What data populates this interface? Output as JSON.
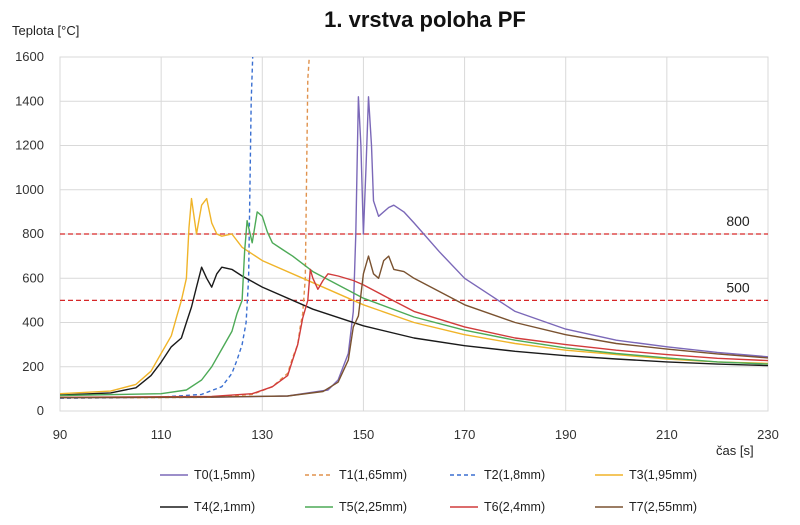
{
  "chart_data": {
    "type": "line",
    "title": "1. vrstva poloha PF",
    "ylabel": "Teplota [°C]",
    "xlabel": "čas [s]",
    "xlim": [
      90,
      230
    ],
    "ylim": [
      0,
      1600
    ],
    "xticks": [
      90,
      110,
      130,
      150,
      170,
      190,
      210,
      230
    ],
    "yticks": [
      0,
      200,
      400,
      600,
      800,
      1000,
      1200,
      1400,
      1600
    ],
    "grid": true,
    "legend_position": "bottom",
    "reference_lines": [
      {
        "y": 800,
        "label": "800",
        "color": "#d62728",
        "dash": true
      },
      {
        "y": 500,
        "label": "500",
        "color": "#d62728",
        "dash": true
      }
    ],
    "series": [
      {
        "name": "T0(1,5mm)",
        "color": "#7b68b8",
        "dash": false,
        "points": [
          [
            90,
            60
          ],
          [
            120,
            62
          ],
          [
            135,
            68
          ],
          [
            143,
            95
          ],
          [
            145,
            140
          ],
          [
            147,
            260
          ],
          [
            148,
            450
          ],
          [
            148.5,
            800
          ],
          [
            149,
            1420
          ],
          [
            149.5,
            1200
          ],
          [
            150,
            800
          ],
          [
            150.5,
            1100
          ],
          [
            151,
            1420
          ],
          [
            151.6,
            1200
          ],
          [
            152,
            950
          ],
          [
            153,
            880
          ],
          [
            155,
            920
          ],
          [
            156,
            930
          ],
          [
            158,
            900
          ],
          [
            160,
            850
          ],
          [
            165,
            720
          ],
          [
            170,
            600
          ],
          [
            180,
            450
          ],
          [
            190,
            370
          ],
          [
            200,
            320
          ],
          [
            210,
            290
          ],
          [
            220,
            265
          ],
          [
            230,
            245
          ]
        ]
      },
      {
        "name": "T1(1,65mm)",
        "color": "#e0924d",
        "dash": true,
        "points": [
          [
            90,
            58
          ],
          [
            120,
            62
          ],
          [
            128,
            75
          ],
          [
            132,
            110
          ],
          [
            135,
            170
          ],
          [
            136,
            240
          ],
          [
            137,
            300
          ],
          [
            137.5,
            380
          ],
          [
            138,
            440
          ],
          [
            138.5,
            600
          ],
          [
            139,
            1500
          ],
          [
            139.3,
            1600
          ]
        ]
      },
      {
        "name": "T2(1,8mm)",
        "color": "#3a6fd1",
        "dash": true,
        "points": [
          [
            90,
            58
          ],
          [
            110,
            63
          ],
          [
            118,
            75
          ],
          [
            122,
            110
          ],
          [
            124,
            170
          ],
          [
            125,
            230
          ],
          [
            126,
            300
          ],
          [
            126.8,
            400
          ],
          [
            127.3,
            600
          ],
          [
            127.8,
            1400
          ],
          [
            128.1,
            1600
          ]
        ]
      },
      {
        "name": "T3(1,95mm)",
        "color": "#f0b429",
        "dash": false,
        "points": [
          [
            90,
            78
          ],
          [
            100,
            90
          ],
          [
            105,
            120
          ],
          [
            108,
            180
          ],
          [
            110,
            260
          ],
          [
            112,
            340
          ],
          [
            113,
            420
          ],
          [
            114,
            500
          ],
          [
            115,
            600
          ],
          [
            115.5,
            830
          ],
          [
            116,
            960
          ],
          [
            117,
            800
          ],
          [
            118,
            930
          ],
          [
            119,
            960
          ],
          [
            120,
            850
          ],
          [
            121,
            800
          ],
          [
            122,
            790
          ],
          [
            124,
            800
          ],
          [
            126,
            740
          ],
          [
            130,
            680
          ],
          [
            140,
            580
          ],
          [
            150,
            480
          ],
          [
            160,
            400
          ],
          [
            170,
            345
          ],
          [
            180,
            305
          ],
          [
            190,
            275
          ],
          [
            200,
            255
          ],
          [
            210,
            235
          ],
          [
            220,
            222
          ],
          [
            230,
            215
          ]
        ]
      },
      {
        "name": "T4(2,1mm)",
        "color": "#1a1a1a",
        "dash": false,
        "points": [
          [
            90,
            72
          ],
          [
            100,
            82
          ],
          [
            105,
            105
          ],
          [
            108,
            160
          ],
          [
            110,
            220
          ],
          [
            112,
            290
          ],
          [
            114,
            330
          ],
          [
            115,
            400
          ],
          [
            116,
            470
          ],
          [
            117,
            560
          ],
          [
            118,
            650
          ],
          [
            119,
            600
          ],
          [
            120,
            560
          ],
          [
            121,
            620
          ],
          [
            122,
            650
          ],
          [
            124,
            640
          ],
          [
            126,
            610
          ],
          [
            130,
            560
          ],
          [
            140,
            460
          ],
          [
            150,
            385
          ],
          [
            160,
            330
          ],
          [
            170,
            295
          ],
          [
            180,
            270
          ],
          [
            190,
            250
          ],
          [
            200,
            235
          ],
          [
            210,
            222
          ],
          [
            220,
            212
          ],
          [
            230,
            205
          ]
        ]
      },
      {
        "name": "T5(2,25mm)",
        "color": "#4daa57",
        "dash": false,
        "points": [
          [
            90,
            70
          ],
          [
            110,
            78
          ],
          [
            115,
            95
          ],
          [
            118,
            140
          ],
          [
            120,
            200
          ],
          [
            122,
            280
          ],
          [
            124,
            360
          ],
          [
            125,
            440
          ],
          [
            126,
            500
          ],
          [
            126.5,
            720
          ],
          [
            127,
            860
          ],
          [
            128,
            760
          ],
          [
            129,
            900
          ],
          [
            130,
            880
          ],
          [
            131,
            810
          ],
          [
            132,
            760
          ],
          [
            134,
            730
          ],
          [
            136,
            700
          ],
          [
            140,
            630
          ],
          [
            150,
            510
          ],
          [
            160,
            425
          ],
          [
            170,
            365
          ],
          [
            180,
            320
          ],
          [
            190,
            285
          ],
          [
            200,
            260
          ],
          [
            210,
            240
          ],
          [
            220,
            222
          ],
          [
            230,
            212
          ]
        ]
      },
      {
        "name": "T6(2,4mm)",
        "color": "#d13b3b",
        "dash": false,
        "points": [
          [
            90,
            62
          ],
          [
            120,
            66
          ],
          [
            128,
            78
          ],
          [
            132,
            110
          ],
          [
            135,
            160
          ],
          [
            136,
            230
          ],
          [
            137,
            300
          ],
          [
            138,
            420
          ],
          [
            139,
            500
          ],
          [
            139.5,
            640
          ],
          [
            140,
            600
          ],
          [
            141,
            550
          ],
          [
            142,
            590
          ],
          [
            143,
            620
          ],
          [
            145,
            610
          ],
          [
            148,
            590
          ],
          [
            150,
            570
          ],
          [
            155,
            510
          ],
          [
            160,
            450
          ],
          [
            170,
            380
          ],
          [
            180,
            330
          ],
          [
            190,
            300
          ],
          [
            200,
            275
          ],
          [
            210,
            255
          ],
          [
            220,
            238
          ],
          [
            230,
            228
          ]
        ]
      },
      {
        "name": "T7(2,55mm)",
        "color": "#7a5230",
        "dash": false,
        "points": [
          [
            90,
            60
          ],
          [
            120,
            63
          ],
          [
            135,
            68
          ],
          [
            142,
            88
          ],
          [
            145,
            130
          ],
          [
            147,
            230
          ],
          [
            148,
            380
          ],
          [
            149,
            430
          ],
          [
            150,
            620
          ],
          [
            151,
            700
          ],
          [
            152,
            620
          ],
          [
            153,
            600
          ],
          [
            154,
            680
          ],
          [
            155,
            700
          ],
          [
            156,
            640
          ],
          [
            158,
            630
          ],
          [
            160,
            600
          ],
          [
            165,
            540
          ],
          [
            170,
            480
          ],
          [
            180,
            400
          ],
          [
            190,
            345
          ],
          [
            200,
            305
          ],
          [
            210,
            280
          ],
          [
            220,
            258
          ],
          [
            230,
            240
          ]
        ]
      }
    ]
  }
}
